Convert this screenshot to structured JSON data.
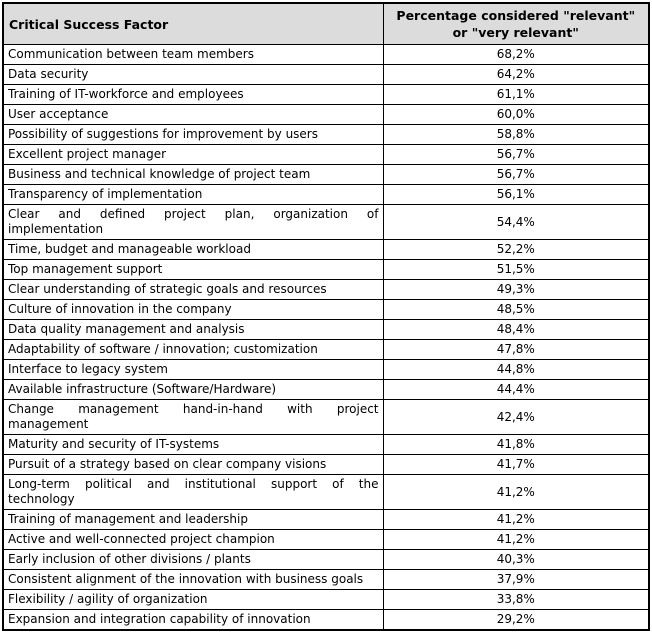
{
  "colors": {
    "header_background": "#dcdcdc",
    "border": "#000000",
    "text": "#000000",
    "page_background": "#ffffff"
  },
  "table": {
    "header": {
      "factor_label": "Critical Success Factor",
      "percentage_label": "Percentage considered \"relevant\" or \"very relevant\""
    },
    "rows": [
      {
        "factor_lines": [
          "Communication between team members"
        ],
        "value": "68,2%"
      },
      {
        "factor_lines": [
          "Data security"
        ],
        "value": "64,2%"
      },
      {
        "factor_lines": [
          "Training of IT-workforce and employees"
        ],
        "value": "61,1%"
      },
      {
        "factor_lines": [
          "User acceptance"
        ],
        "value": "60,0%"
      },
      {
        "factor_lines": [
          "Possibility of suggestions for improvement by users"
        ],
        "value": "58,8%"
      },
      {
        "factor_lines": [
          "Excellent project manager"
        ],
        "value": "56,7%"
      },
      {
        "factor_lines": [
          "Business and technical knowledge of project team"
        ],
        "value": "56,7%"
      },
      {
        "factor_lines": [
          "Transparency of implementation"
        ],
        "value": "56,1%"
      },
      {
        "factor_lines": [
          "Clear and defined project plan, organization of",
          "implementation"
        ],
        "value": "54,4%"
      },
      {
        "factor_lines": [
          "Time, budget and manageable workload"
        ],
        "value": "52,2%"
      },
      {
        "factor_lines": [
          "Top management support"
        ],
        "value": "51,5%"
      },
      {
        "factor_lines": [
          "Clear understanding of strategic goals and resources"
        ],
        "value": "49,3%"
      },
      {
        "factor_lines": [
          "Culture of innovation in the company"
        ],
        "value": "48,5%"
      },
      {
        "factor_lines": [
          "Data quality management and analysis"
        ],
        "value": "48,4%"
      },
      {
        "factor_lines": [
          "Adaptability of software / innovation; customization"
        ],
        "value": "47,8%"
      },
      {
        "factor_lines": [
          "Interface to legacy system"
        ],
        "value": "44,8%"
      },
      {
        "factor_lines": [
          "Available infrastructure (Software/Hardware)"
        ],
        "value": "44,4%"
      },
      {
        "factor_lines": [
          "Change management hand-in-hand with project",
          "management"
        ],
        "value": "42,4%"
      },
      {
        "factor_lines": [
          "Maturity and security of IT-systems"
        ],
        "value": "41,8%"
      },
      {
        "factor_lines": [
          "Pursuit of a strategy based on clear company visions"
        ],
        "value": "41,7%"
      },
      {
        "factor_lines": [
          "Long-term political and institutional support of the",
          "technology"
        ],
        "value": "41,2%"
      },
      {
        "factor_lines": [
          "Training of management and leadership"
        ],
        "value": "41,2%"
      },
      {
        "factor_lines": [
          "Active and well-connected project champion"
        ],
        "value": "41,2%"
      },
      {
        "factor_lines": [
          "Early inclusion of other divisions / plants"
        ],
        "value": "40,3%"
      },
      {
        "factor_lines": [
          "Consistent alignment of the innovation with business goals"
        ],
        "value": "37,9%"
      },
      {
        "factor_lines": [
          "Flexibility / agility of organization"
        ],
        "value": "33,8%"
      },
      {
        "factor_lines": [
          "Expansion and integration capability of innovation"
        ],
        "value": "29,2%"
      }
    ]
  }
}
